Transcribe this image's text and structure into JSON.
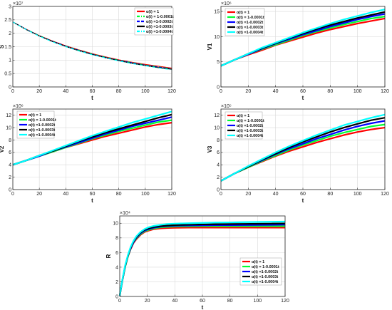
{
  "colors": {
    "red": "#ff0000",
    "green": "#00ff33",
    "blue": "#0000ff",
    "black": "#000000",
    "cyan": "#00ffff",
    "grid": "#d9d9d9",
    "axis": "#262626"
  },
  "chart_data": [
    {
      "type": "line",
      "panel": "S",
      "xlabel": "t",
      "ylabel": "S",
      "exponent": "×10⁷",
      "xlim": [
        0,
        120
      ],
      "ylim": [
        0,
        3
      ],
      "xticks": [
        "0",
        "20",
        "40",
        "60",
        "80",
        "100",
        "120"
      ],
      "yticks": [
        "0",
        "0.5",
        "1",
        "1.5",
        "2",
        "2.5",
        "3"
      ],
      "grid": true,
      "legend_position": "top-right",
      "x": [
        0,
        10,
        20,
        30,
        40,
        50,
        60,
        70,
        80,
        90,
        100,
        110,
        120
      ],
      "series": [
        {
          "name": "α(t) = 1",
          "color": "red",
          "style": "solid",
          "values": [
            2.42,
            2.15,
            1.91,
            1.71,
            1.53,
            1.38,
            1.24,
            1.12,
            1.01,
            0.92,
            0.84,
            0.77,
            0.7
          ]
        },
        {
          "name": "α(t) = 1-0.0001t",
          "color": "green",
          "style": "dashdot",
          "values": [
            2.42,
            2.15,
            1.91,
            1.7,
            1.52,
            1.37,
            1.23,
            1.11,
            1.0,
            0.91,
            0.82,
            0.75,
            0.68
          ]
        },
        {
          "name": "α(t) =1-0.0002t",
          "color": "blue",
          "style": "dashed",
          "values": [
            2.42,
            2.15,
            1.9,
            1.7,
            1.52,
            1.36,
            1.22,
            1.1,
            0.99,
            0.9,
            0.81,
            0.74,
            0.67
          ]
        },
        {
          "name": "α(t) =1-0.0003t",
          "color": "black",
          "style": "solid",
          "values": [
            2.42,
            2.14,
            1.9,
            1.69,
            1.51,
            1.35,
            1.21,
            1.09,
            0.98,
            0.88,
            0.8,
            0.72,
            0.66
          ]
        },
        {
          "name": "α(t) =1-0.0004t",
          "color": "cyan",
          "style": "dashdot",
          "values": [
            2.42,
            2.14,
            1.89,
            1.68,
            1.5,
            1.34,
            1.2,
            1.08,
            0.97,
            0.87,
            0.79,
            0.71,
            0.64
          ]
        }
      ]
    },
    {
      "type": "line",
      "panel": "V1",
      "xlabel": "t",
      "ylabel": "V1",
      "exponent": "×10⁶",
      "xlim": [
        0,
        120
      ],
      "ylim": [
        0,
        16
      ],
      "xticks": [
        "0",
        "20",
        "40",
        "60",
        "80",
        "100",
        "120"
      ],
      "yticks": [
        "0",
        "5",
        "10",
        "15"
      ],
      "grid": true,
      "legend_position": "top-left",
      "x": [
        0,
        10,
        20,
        30,
        40,
        50,
        60,
        70,
        80,
        90,
        100,
        110,
        120
      ],
      "series": [
        {
          "name": "α(t) = 1",
          "color": "red",
          "values": [
            4.2,
            5.4,
            6.4,
            7.3,
            8.3,
            9.1,
            9.9,
            10.7,
            11.4,
            12.0,
            12.6,
            13.1,
            13.6
          ]
        },
        {
          "name": "α(t) = 1-0.0001t",
          "color": "green",
          "values": [
            4.2,
            5.4,
            6.5,
            7.5,
            8.4,
            9.3,
            10.2,
            11.0,
            11.7,
            12.4,
            13.0,
            13.6,
            14.0
          ]
        },
        {
          "name": "α(t) =1-0.0002t",
          "color": "blue",
          "values": [
            4.2,
            5.4,
            6.5,
            7.6,
            8.6,
            9.5,
            10.4,
            11.2,
            12.0,
            12.7,
            13.4,
            14.0,
            14.5
          ]
        },
        {
          "name": "α(t) =1-0.0003t",
          "color": "black",
          "values": [
            4.2,
            5.4,
            6.6,
            7.7,
            8.7,
            9.7,
            10.6,
            11.5,
            12.3,
            13.0,
            13.7,
            14.3,
            14.9
          ]
        },
        {
          "name": "α(t) =1-0.0004t",
          "color": "cyan",
          "values": [
            4.2,
            5.4,
            6.6,
            7.8,
            8.8,
            9.8,
            10.8,
            11.7,
            12.6,
            13.4,
            14.1,
            14.8,
            15.4
          ]
        }
      ]
    },
    {
      "type": "line",
      "panel": "V2",
      "xlabel": "t",
      "ylabel": "V2",
      "exponent": "×10⁶",
      "xlim": [
        0,
        120
      ],
      "ylim": [
        0,
        13
      ],
      "xticks": [
        "0",
        "20",
        "40",
        "60",
        "80",
        "100",
        "120"
      ],
      "yticks": [
        "0",
        "2",
        "4",
        "6",
        "8",
        "10",
        "12"
      ],
      "grid": true,
      "legend_position": "top-left",
      "x": [
        0,
        10,
        20,
        30,
        40,
        50,
        60,
        70,
        80,
        90,
        100,
        110,
        120
      ],
      "series": [
        {
          "name": "α(t) = 1",
          "color": "red",
          "values": [
            4.0,
            4.7,
            5.4,
            6.1,
            6.8,
            7.4,
            8.0,
            8.6,
            9.1,
            9.6,
            10.1,
            10.5,
            10.8
          ]
        },
        {
          "name": "α(t) = 1-0.0001t",
          "color": "green",
          "values": [
            4.0,
            4.7,
            5.4,
            6.1,
            6.8,
            7.5,
            8.2,
            8.8,
            9.4,
            9.9,
            10.4,
            10.9,
            11.2
          ]
        },
        {
          "name": "α(t) =1-0.0002t",
          "color": "blue",
          "values": [
            4.0,
            4.7,
            5.4,
            6.2,
            6.9,
            7.6,
            8.3,
            9.0,
            9.6,
            10.2,
            10.7,
            11.2,
            11.7
          ]
        },
        {
          "name": "α(t) =1-0.0003t",
          "color": "black",
          "values": [
            4.0,
            4.7,
            5.5,
            6.2,
            7.0,
            7.8,
            8.5,
            9.2,
            9.8,
            10.4,
            11.0,
            11.6,
            12.1
          ]
        },
        {
          "name": "α(t) =1-0.0004t",
          "color": "cyan",
          "values": [
            4.0,
            4.7,
            5.5,
            6.3,
            7.1,
            7.9,
            8.7,
            9.4,
            10.1,
            10.8,
            11.4,
            12.0,
            12.6
          ]
        }
      ]
    },
    {
      "type": "line",
      "panel": "V3",
      "xlabel": "t",
      "ylabel": "V3",
      "exponent": "×10⁵",
      "xlim": [
        0,
        120
      ],
      "ylim": [
        0,
        13
      ],
      "xticks": [
        "0",
        "20",
        "40",
        "60",
        "80",
        "100",
        "120"
      ],
      "yticks": [
        "0",
        "2",
        "4",
        "6",
        "8",
        "10",
        "12"
      ],
      "grid": true,
      "legend_position": "top-left",
      "x": [
        0,
        10,
        20,
        30,
        40,
        50,
        60,
        70,
        80,
        90,
        100,
        110,
        120
      ],
      "series": [
        {
          "name": "α(t) = 1",
          "color": "red",
          "values": [
            1.4,
            2.6,
            3.6,
            4.5,
            5.4,
            6.2,
            6.9,
            7.6,
            8.2,
            8.8,
            9.3,
            9.7,
            10.0
          ]
        },
        {
          "name": "α(t) = 1-0.0001t",
          "color": "green",
          "values": [
            1.4,
            2.6,
            3.6,
            4.6,
            5.5,
            6.4,
            7.2,
            7.9,
            8.6,
            9.2,
            9.7,
            10.2,
            10.5
          ]
        },
        {
          "name": "α(t) =1-0.0002t",
          "color": "blue",
          "values": [
            1.4,
            2.6,
            3.7,
            4.7,
            5.7,
            6.6,
            7.4,
            8.2,
            8.9,
            9.6,
            10.2,
            10.7,
            11.1
          ]
        },
        {
          "name": "α(t) =1-0.0003t",
          "color": "black",
          "values": [
            1.4,
            2.6,
            3.7,
            4.8,
            5.8,
            6.8,
            7.7,
            8.5,
            9.3,
            10.0,
            10.6,
            11.2,
            11.6
          ]
        },
        {
          "name": "α(t) =1-0.0004t",
          "color": "cyan",
          "values": [
            1.4,
            2.6,
            3.8,
            4.9,
            6.0,
            7.0,
            7.9,
            8.8,
            9.6,
            10.4,
            11.0,
            11.6,
            12.1
          ]
        }
      ]
    },
    {
      "type": "line",
      "panel": "R",
      "xlabel": "t",
      "ylabel": "R",
      "exponent": "×10⁴",
      "xlim": [
        0,
        120
      ],
      "ylim": [
        0,
        11
      ],
      "xticks": [
        "0",
        "20",
        "40",
        "60",
        "80",
        "100",
        "120"
      ],
      "yticks": [
        "0",
        "2",
        "4",
        "6",
        "8",
        "10"
      ],
      "grid": true,
      "legend_position": "bottom-right",
      "x": [
        0,
        2,
        4,
        6,
        8,
        10,
        12,
        15,
        18,
        21,
        25,
        30,
        35,
        40,
        50,
        60,
        70,
        80,
        90,
        100,
        110,
        120
      ],
      "series": [
        {
          "name": "α(t) = 1",
          "color": "red",
          "values": [
            0.1,
            2.3,
            4.1,
            5.5,
            6.5,
            7.3,
            7.8,
            8.4,
            8.8,
            9.0,
            9.2,
            9.3,
            9.35,
            9.38,
            9.4,
            9.4,
            9.4,
            9.4,
            9.4,
            9.4,
            9.4,
            9.4
          ]
        },
        {
          "name": "α(t) = 1-0.0001t",
          "color": "green",
          "values": [
            0.1,
            2.3,
            4.1,
            5.5,
            6.6,
            7.4,
            7.9,
            8.5,
            8.9,
            9.1,
            9.3,
            9.45,
            9.5,
            9.55,
            9.58,
            9.6,
            9.6,
            9.6,
            9.6,
            9.6,
            9.6,
            9.6
          ]
        },
        {
          "name": "α(t) =1-0.0002t",
          "color": "blue",
          "values": [
            0.1,
            2.3,
            4.2,
            5.6,
            6.6,
            7.4,
            8.0,
            8.6,
            9.0,
            9.2,
            9.4,
            9.55,
            9.62,
            9.66,
            9.7,
            9.72,
            9.74,
            9.75,
            9.76,
            9.77,
            9.78,
            9.8
          ]
        },
        {
          "name": "α(t) =1-0.0003t",
          "color": "black",
          "values": [
            0.1,
            2.3,
            4.2,
            5.6,
            6.7,
            7.5,
            8.1,
            8.7,
            9.1,
            9.3,
            9.5,
            9.62,
            9.7,
            9.75,
            9.8,
            9.84,
            9.87,
            9.89,
            9.91,
            9.93,
            9.95,
            9.97
          ]
        },
        {
          "name": "α(t) =1-0.0004t",
          "color": "cyan",
          "values": [
            0.1,
            2.4,
            4.3,
            5.7,
            6.8,
            7.6,
            8.2,
            8.8,
            9.2,
            9.45,
            9.65,
            9.8,
            9.9,
            9.95,
            10.0,
            10.05,
            10.1,
            10.12,
            10.15,
            10.17,
            10.2,
            10.22
          ]
        }
      ]
    }
  ]
}
